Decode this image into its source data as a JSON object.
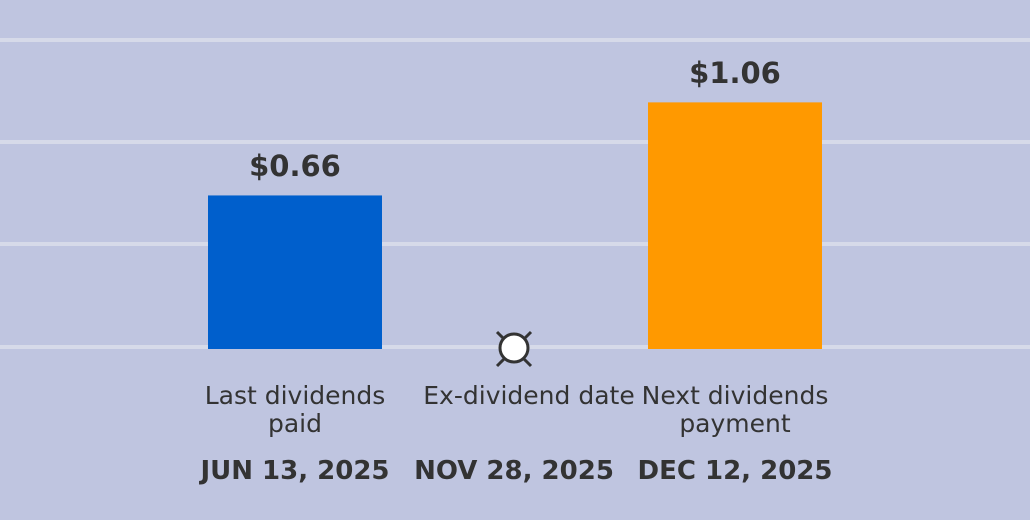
{
  "chart_data": {
    "type": "bar",
    "categories": [
      "Last dividends paid",
      "Ex-dividend date",
      "Next dividends payment"
    ],
    "dates": [
      "JUN 13, 2025",
      "NOV 28, 2025",
      "DEC 12, 2025"
    ],
    "values": [
      0.66,
      null,
      1.06
    ],
    "value_labels": [
      "$0.66",
      null,
      "$1.06"
    ],
    "colors": [
      "#005fcc",
      null,
      "#ff9900"
    ],
    "ylim": [
      0,
      1.5
    ]
  }
}
